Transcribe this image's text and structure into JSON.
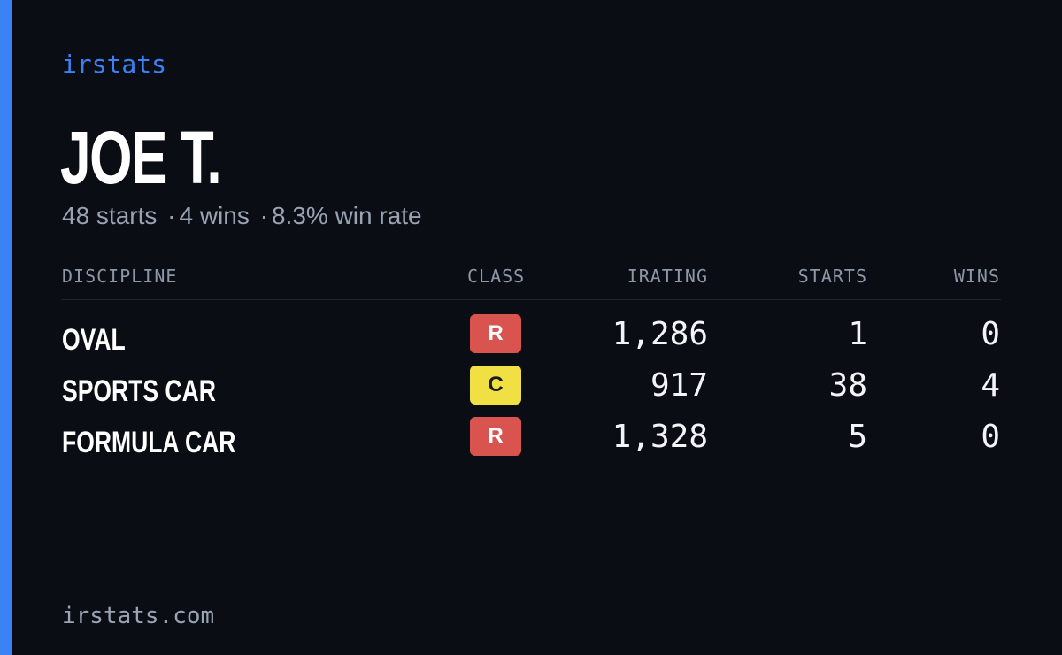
{
  "brand": "irstats",
  "driver": {
    "name": "JOE T.",
    "starts_text": "48 starts",
    "wins_text": "4 wins",
    "win_rate_text": "8.3% win rate",
    "separator": "·"
  },
  "table": {
    "headers": {
      "discipline": "DISCIPLINE",
      "class": "CLASS",
      "irating": "IRATING",
      "starts": "STARTS",
      "wins": "WINS"
    },
    "rows": [
      {
        "discipline": "OVAL",
        "class": "R",
        "class_color": "#d9534f",
        "class_text_color": "#ffffff",
        "irating": "1,286",
        "starts": "1",
        "wins": "0"
      },
      {
        "discipline": "SPORTS CAR",
        "class": "C",
        "class_color": "#f0e044",
        "class_text_color": "#1a1a1a",
        "irating": "917",
        "starts": "38",
        "wins": "4"
      },
      {
        "discipline": "FORMULA CAR",
        "class": "R",
        "class_color": "#d9534f",
        "class_text_color": "#ffffff",
        "irating": "1,328",
        "starts": "5",
        "wins": "0"
      }
    ]
  },
  "footer": "irstats.com",
  "colors": {
    "accent": "#3b82f6",
    "background": "#0a0d14"
  }
}
